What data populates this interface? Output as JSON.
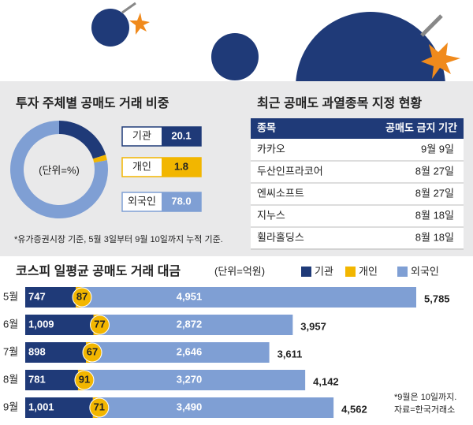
{
  "chart_data": [
    {
      "type": "donut",
      "title": "투자 주체별 공매도 거래 비중",
      "unit": "(단위=%)",
      "categories": [
        "기관",
        "개인",
        "외국인"
      ],
      "values": [
        20.1,
        1.8,
        78.0
      ],
      "value_labels": [
        "20.1",
        "1.8",
        "78.0"
      ],
      "colors": [
        "#1f3a78",
        "#f2b600",
        "#7f9fd4"
      ],
      "note": "*유가증권시장 기준, 5월 3일부터 9월 10일까지 누적 기준."
    },
    {
      "type": "stacked-bar",
      "title": "코스피 일평균 공매도 거래 대금",
      "unit": "(단위=억원)",
      "categories": [
        "5월",
        "6월",
        "7월",
        "8월",
        "9월"
      ],
      "series": [
        {
          "name": "기관",
          "color": "#1f3a78",
          "values": [
            747,
            1009,
            898,
            781,
            1001
          ],
          "value_labels": [
            "747",
            "1,009",
            "898",
            "781",
            "1,001"
          ]
        },
        {
          "name": "개인",
          "color": "#f2b600",
          "values": [
            87,
            77,
            67,
            91,
            71
          ]
        },
        {
          "name": "외국인",
          "color": "#7f9fd4",
          "values": [
            4951,
            2872,
            2646,
            3270,
            3490
          ],
          "value_labels": [
            "4,951",
            "2,872",
            "2,646",
            "3,270",
            "3,490"
          ]
        }
      ],
      "totals": [
        5785,
        3957,
        3611,
        4142,
        4562
      ],
      "total_labels": [
        "5,785",
        "3,957",
        "3,611",
        "4,142",
        "4,562"
      ],
      "notes": [
        "*9월은 10일까지.",
        "자료=한국거래소"
      ]
    }
  ],
  "table": {
    "title": "최근 공매도 과열종목 지정 현황",
    "header": [
      "종목",
      "공매도 금지 기간"
    ],
    "rows": [
      [
        "카카오",
        "9월 9일"
      ],
      [
        "두산인프라코어",
        "8월 27일"
      ],
      [
        "엔씨소프트",
        "8월 27일"
      ],
      [
        "지누스",
        "8월 18일"
      ],
      [
        "휠라홀딩스",
        "8월 18일"
      ]
    ]
  }
}
